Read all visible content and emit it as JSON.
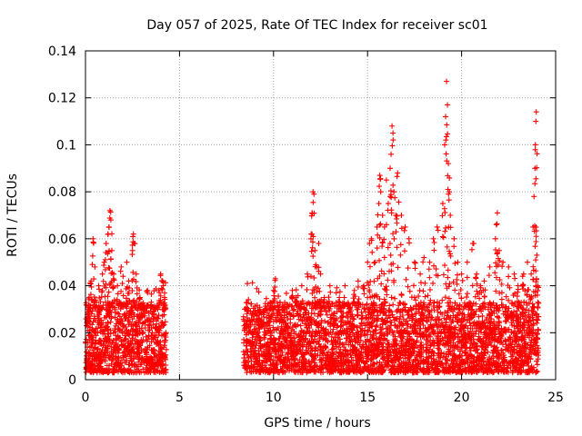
{
  "chart_data": {
    "type": "scatter",
    "title": "Day 057 of 2025, Rate Of TEC Index for receiver sc01",
    "xlabel": "GPS time / hours",
    "ylabel": "ROTI / TECUs",
    "xlim": [
      0,
      25
    ],
    "ylim": [
      0,
      0.14
    ],
    "xticks": [
      "0",
      "5",
      "10",
      "15",
      "20",
      "25"
    ],
    "xtick_values": [
      0,
      5,
      10,
      15,
      20,
      25
    ],
    "yticks": [
      "0",
      "0.02",
      "0.04",
      "0.06",
      "0.08",
      "0.1",
      "0.12",
      "0.14"
    ],
    "ytick_values": [
      0,
      0.02,
      0.04,
      0.06,
      0.08,
      0.1,
      0.12,
      0.14
    ],
    "grid": true,
    "marker": "+",
    "marker_color": "#ff0000",
    "data_gap_hours": [
      4.3,
      8.4
    ],
    "series": [
      {
        "name": "sc01",
        "points": [
          [
            0.1,
            0.025
          ],
          [
            0.2,
            0.035
          ],
          [
            0.3,
            0.042
          ],
          [
            0.4,
            0.06
          ],
          [
            0.5,
            0.048
          ],
          [
            0.7,
            0.04
          ],
          [
            0.8,
            0.03
          ],
          [
            0.9,
            0.045
          ],
          [
            1.0,
            0.05
          ],
          [
            1.1,
            0.058
          ],
          [
            1.2,
            0.062
          ],
          [
            1.25,
            0.065
          ],
          [
            1.3,
            0.072
          ],
          [
            1.35,
            0.068
          ],
          [
            1.4,
            0.055
          ],
          [
            1.5,
            0.045
          ],
          [
            1.7,
            0.04
          ],
          [
            1.9,
            0.048
          ],
          [
            2.0,
            0.044
          ],
          [
            2.2,
            0.05
          ],
          [
            2.3,
            0.042
          ],
          [
            2.5,
            0.055
          ],
          [
            2.55,
            0.062
          ],
          [
            2.6,
            0.058
          ],
          [
            2.7,
            0.045
          ],
          [
            2.9,
            0.035
          ],
          [
            3.1,
            0.03
          ],
          [
            3.3,
            0.038
          ],
          [
            3.5,
            0.033
          ],
          [
            3.7,
            0.03
          ],
          [
            3.9,
            0.038
          ],
          [
            4.0,
            0.045
          ],
          [
            4.1,
            0.042
          ],
          [
            4.2,
            0.035
          ],
          [
            8.5,
            0.03
          ],
          [
            8.8,
            0.02
          ],
          [
            9.2,
            0.025
          ],
          [
            9.5,
            0.022
          ],
          [
            9.8,
            0.03
          ],
          [
            10.0,
            0.038
          ],
          [
            10.1,
            0.043
          ],
          [
            10.5,
            0.03
          ],
          [
            11.0,
            0.038
          ],
          [
            11.2,
            0.035
          ],
          [
            11.5,
            0.04
          ],
          [
            11.8,
            0.045
          ],
          [
            12.0,
            0.062
          ],
          [
            12.05,
            0.071
          ],
          [
            12.1,
            0.08
          ],
          [
            12.15,
            0.079
          ],
          [
            12.2,
            0.055
          ],
          [
            12.3,
            0.048
          ],
          [
            12.4,
            0.058
          ],
          [
            12.5,
            0.045
          ],
          [
            12.7,
            0.035
          ],
          [
            13.0,
            0.04
          ],
          [
            13.5,
            0.035
          ],
          [
            13.8,
            0.04
          ],
          [
            14.0,
            0.032
          ],
          [
            14.3,
            0.038
          ],
          [
            14.5,
            0.042
          ],
          [
            14.8,
            0.04
          ],
          [
            15.0,
            0.05
          ],
          [
            15.1,
            0.058
          ],
          [
            15.2,
            0.06
          ],
          [
            15.4,
            0.05
          ],
          [
            15.5,
            0.065
          ],
          [
            15.6,
            0.075
          ],
          [
            15.65,
            0.087
          ],
          [
            15.7,
            0.08
          ],
          [
            15.8,
            0.07
          ],
          [
            15.9,
            0.065
          ],
          [
            16.0,
            0.085
          ],
          [
            16.1,
            0.075
          ],
          [
            16.2,
            0.09
          ],
          [
            16.25,
            0.096
          ],
          [
            16.3,
            0.108
          ],
          [
            16.35,
            0.105
          ],
          [
            16.4,
            0.08
          ],
          [
            16.5,
            0.07
          ],
          [
            16.6,
            0.088
          ],
          [
            16.8,
            0.07
          ],
          [
            17.0,
            0.065
          ],
          [
            17.2,
            0.06
          ],
          [
            17.5,
            0.05
          ],
          [
            17.8,
            0.045
          ],
          [
            18.0,
            0.052
          ],
          [
            18.3,
            0.05
          ],
          [
            18.5,
            0.06
          ],
          [
            18.7,
            0.065
          ],
          [
            19.0,
            0.075
          ],
          [
            19.1,
            0.1
          ],
          [
            19.15,
            0.112
          ],
          [
            19.2,
            0.127
          ],
          [
            19.25,
            0.117
          ],
          [
            19.3,
            0.092
          ],
          [
            19.35,
            0.08
          ],
          [
            19.4,
            0.07
          ],
          [
            19.6,
            0.06
          ],
          [
            19.8,
            0.05
          ],
          [
            20.0,
            0.045
          ],
          [
            20.3,
            0.05
          ],
          [
            20.6,
            0.058
          ],
          [
            20.8,
            0.045
          ],
          [
            21.0,
            0.04
          ],
          [
            21.2,
            0.042
          ],
          [
            21.5,
            0.048
          ],
          [
            21.8,
            0.06
          ],
          [
            21.85,
            0.066
          ],
          [
            21.9,
            0.071
          ],
          [
            22.0,
            0.055
          ],
          [
            22.2,
            0.05
          ],
          [
            22.5,
            0.048
          ],
          [
            22.8,
            0.045
          ],
          [
            23.0,
            0.04
          ],
          [
            23.3,
            0.045
          ],
          [
            23.5,
            0.05
          ],
          [
            23.7,
            0.045
          ],
          [
            23.8,
            0.065
          ],
          [
            23.85,
            0.078
          ],
          [
            23.9,
            0.09
          ],
          [
            23.92,
            0.1
          ],
          [
            23.95,
            0.11
          ],
          [
            23.97,
            0.114
          ],
          [
            24.0,
            0.053
          ],
          [
            24.05,
            0.04
          ]
        ],
        "dense_band": [
          {
            "x_range": [
              0,
              4.3
            ],
            "y_range": [
              0.003,
              0.033
            ]
          },
          {
            "x_range": [
              8.4,
              24.1
            ],
            "y_range": [
              0.003,
              0.033
            ]
          }
        ]
      }
    ]
  }
}
